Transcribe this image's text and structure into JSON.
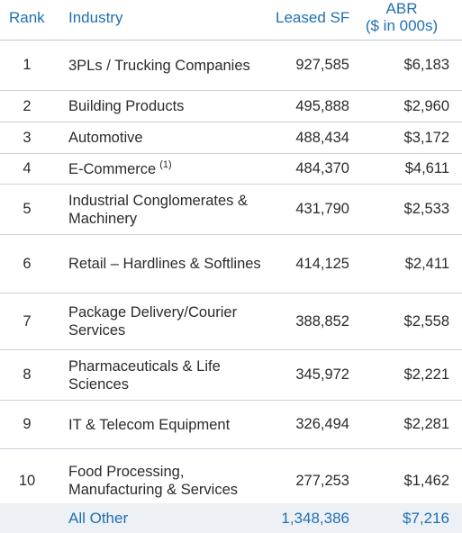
{
  "header": {
    "rank": "Rank",
    "industry": "Industry",
    "leased_sf": "Leased SF",
    "abr_line1": "ABR",
    "abr_line2": "($ in 000s)"
  },
  "rows": [
    {
      "rank": "1",
      "industry": "3PLs / Trucking Companies",
      "footnote": "",
      "leased_sf": "927,585",
      "abr": "$6,183"
    },
    {
      "rank": "2",
      "industry": "Building Products",
      "footnote": "",
      "leased_sf": "495,888",
      "abr": "$2,960"
    },
    {
      "rank": "3",
      "industry": "Automotive",
      "footnote": "",
      "leased_sf": "488,434",
      "abr": "$3,172"
    },
    {
      "rank": "4",
      "industry": "E-Commerce",
      "footnote": "(1)",
      "leased_sf": "484,370",
      "abr": "$4,611"
    },
    {
      "rank": "5",
      "industry": "Industrial Conglomerates & Machinery",
      "footnote": "",
      "leased_sf": "431,790",
      "abr": "$2,533"
    },
    {
      "rank": "6",
      "industry": "Retail – Hardlines & Softlines",
      "footnote": "",
      "leased_sf": "414,125",
      "abr": "$2,411"
    },
    {
      "rank": "7",
      "industry": "Package Delivery/Courier Services",
      "footnote": "",
      "leased_sf": "388,852",
      "abr": "$2,558"
    },
    {
      "rank": "8",
      "industry": "Pharmaceuticals & Life Sciences",
      "footnote": "",
      "leased_sf": "345,972",
      "abr": "$2,221"
    },
    {
      "rank": "9",
      "industry": "IT & Telecom Equipment",
      "footnote": "",
      "leased_sf": "326,494",
      "abr": "$2,281"
    },
    {
      "rank": "10",
      "industry": "Food Processing, Manufacturing & Services",
      "footnote": "",
      "leased_sf": "277,253",
      "abr": "$1,462"
    }
  ],
  "total": {
    "label": "All Other",
    "leased_sf": "1,348,386",
    "abr": "$7,216"
  },
  "colors": {
    "accent": "#1f6fb2",
    "total_background": "#edf1f6",
    "divider": "#c8d3df"
  }
}
